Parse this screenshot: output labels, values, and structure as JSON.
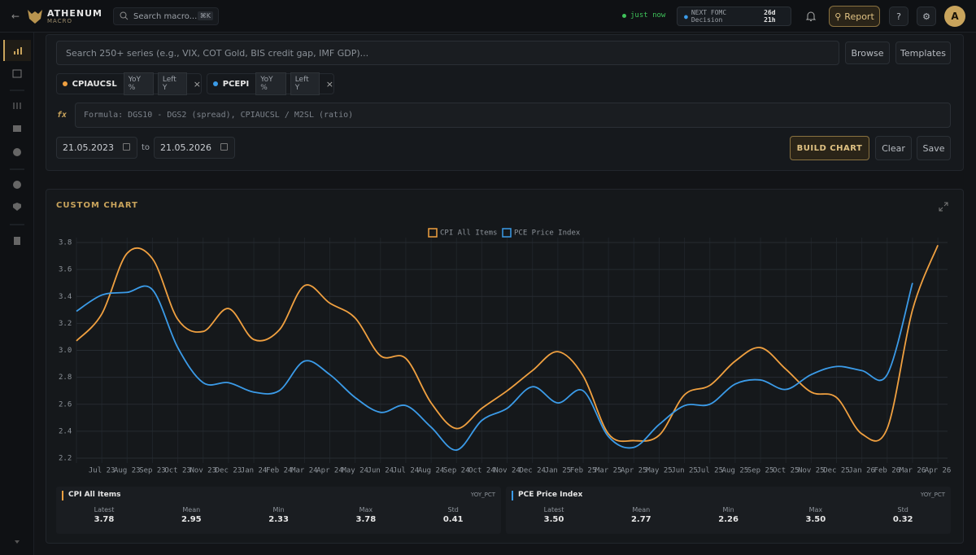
{
  "topbar": {
    "brand": "ATHENUM",
    "brand_sub": "MACRO",
    "search_placeholder": "Search macro...",
    "search_shortcut": "⌘K",
    "status": "just now",
    "fomc_label": "NEXT FOMC Decision",
    "fomc_countdown": "26d 21h",
    "report": "Report",
    "avatar": "A"
  },
  "builder": {
    "search_placeholder": "Search 250+ series (e.g., VIX, COT Gold, BIS credit gap, IMF GDP)...",
    "browse": "Browse",
    "templates": "Templates",
    "chips": [
      {
        "name": "CPIAUCSL",
        "color": "#f0a040",
        "transform": "YoY %",
        "axis": "Left Y",
        "remove": "×"
      },
      {
        "name": "PCEPI",
        "color": "#3b9be8",
        "transform": "YoY %",
        "axis": "Left Y",
        "remove": "×"
      }
    ],
    "formula_label": "fx",
    "formula_placeholder": "Formula: DGS10 - DGS2 (spread), CPIAUCSL / M2SL (ratio)",
    "date_from": "21.05.2023",
    "date_sep": "to",
    "date_to": "21.05.2026",
    "build": "BUILD CHART",
    "clear": "Clear",
    "save": "Save"
  },
  "chart_data": {
    "type": "line",
    "title": "CUSTOM CHART",
    "x": [
      null,
      "Jul 23",
      "Aug 23",
      "Sep 23",
      "Oct 23",
      "Nov 23",
      "Dec 23",
      "Jan 24",
      "Feb 24",
      "Mar 24",
      "Apr 24",
      "May 24",
      "Jun 24",
      "Jul 24",
      "Aug 24",
      "Sep 24",
      "Oct 24",
      "Nov 24",
      "Dec 24",
      "Jan 25",
      "Feb 25",
      "Mar 25",
      "Apr 25",
      "May 25",
      "Jun 25",
      "Jul 25",
      "Aug 25",
      "Sep 25",
      "Oct 25",
      "Nov 25",
      "Dec 25",
      "Jan 26",
      "Feb 26",
      "Mar 26",
      "Apr 26"
    ],
    "series": [
      {
        "name": "CPI All Items",
        "color": "#f0a040",
        "values": [
          3.07,
          3.27,
          3.72,
          3.68,
          3.23,
          3.14,
          3.31,
          3.08,
          3.15,
          3.48,
          3.35,
          3.24,
          2.96,
          2.94,
          2.61,
          2.42,
          2.57,
          2.7,
          2.85,
          2.99,
          2.81,
          2.38,
          2.33,
          2.37,
          2.67,
          2.74,
          2.92,
          3.02,
          2.86,
          2.69,
          2.65,
          2.38,
          2.42,
          3.3,
          3.78
        ]
      },
      {
        "name": "PCE Price Index",
        "color": "#3b9be8",
        "values": [
          3.29,
          3.41,
          3.43,
          3.45,
          3.02,
          2.76,
          2.76,
          2.69,
          2.7,
          2.92,
          2.82,
          2.65,
          2.54,
          2.59,
          2.43,
          2.26,
          2.48,
          2.57,
          2.73,
          2.61,
          2.7,
          2.36,
          2.28,
          2.45,
          2.59,
          2.6,
          2.75,
          2.78,
          2.71,
          2.82,
          2.88,
          2.85,
          2.82,
          3.5,
          null
        ]
      }
    ],
    "ylim": [
      2.2,
      3.8
    ],
    "yticks": [
      2.2,
      2.4,
      2.6,
      2.8,
      {
        "value": 3,
        "label": "3.0"
      },
      3.2,
      3.4,
      3.6,
      3.8
    ],
    "grid": true,
    "legend": "top"
  },
  "stats": [
    {
      "name": "CPI All Items",
      "unit": "YOY_PCT",
      "color": "#f0a040",
      "metrics": [
        {
          "label": "Latest",
          "value": "3.78"
        },
        {
          "label": "Mean",
          "value": "2.95"
        },
        {
          "label": "Min",
          "value": "2.33"
        },
        {
          "label": "Max",
          "value": "3.78"
        },
        {
          "label": "Std",
          "value": "0.41"
        }
      ]
    },
    {
      "name": "PCE Price Index",
      "unit": "YOY_PCT",
      "color": "#3b9be8",
      "metrics": [
        {
          "label": "Latest",
          "value": "3.50"
        },
        {
          "label": "Mean",
          "value": "2.77"
        },
        {
          "label": "Min",
          "value": "2.26"
        },
        {
          "label": "Max",
          "value": "3.50"
        },
        {
          "label": "Std",
          "value": "0.32"
        }
      ]
    }
  ]
}
